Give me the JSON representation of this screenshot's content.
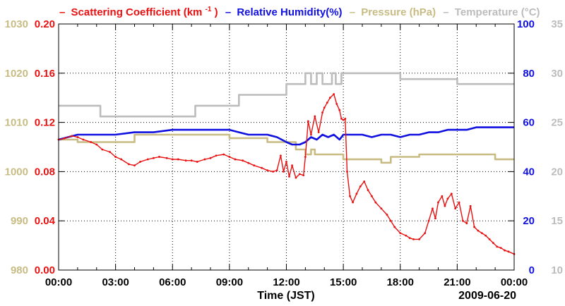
{
  "chart_data": {
    "type": "line",
    "title": "",
    "legend": [
      {
        "dash": "–",
        "label_main": "Scattering Coefficient (km",
        "label_sup": "-1",
        "label_tail": ")",
        "color": "#e81010"
      },
      {
        "dash": "–",
        "label": "Relative Humidity(%)",
        "color": "#1010e0"
      },
      {
        "dash": "–",
        "label": "Pressure (hPa)",
        "color": "#c8bc84"
      },
      {
        "dash": "–",
        "label": "Temperature (°C)",
        "color": "#bcbcbc"
      }
    ],
    "xlabel": "Time (JST)",
    "date_label": "2009-06-20",
    "x_range_hours": [
      0,
      24
    ],
    "x_ticks": [
      "00:00",
      "03:00",
      "06:00",
      "09:00",
      "12:00",
      "15:00",
      "18:00",
      "21:00",
      "00:00"
    ],
    "axes": {
      "scattering": {
        "range": [
          0,
          0.2
        ],
        "ticks": [
          "0.00",
          "0.04",
          "0.08",
          "0.12",
          "0.16",
          "0.20"
        ],
        "color": "#e81010"
      },
      "pressure": {
        "range": [
          980,
          1030
        ],
        "ticks": [
          "980",
          "990",
          "1000",
          "1010",
          "1020",
          "1030"
        ],
        "color": "#c8bc84"
      },
      "humidity": {
        "range": [
          0,
          100
        ],
        "ticks": [
          "0",
          "20",
          "40",
          "60",
          "80",
          "100"
        ],
        "color": "#1010e0"
      },
      "temperature": {
        "range": [
          10,
          35
        ],
        "ticks": [
          "10",
          "15",
          "20",
          "25",
          "30",
          "35"
        ],
        "color": "#bcbcbc"
      }
    },
    "grid": true,
    "series": [
      {
        "name": "Temperature",
        "axis": "temperature",
        "color": "#bcbcbc",
        "x": [
          0,
          2.2,
          2.2,
          7.2,
          7.2,
          9.5,
          9.5,
          12.0,
          12.0,
          13.0,
          13.0,
          13.3,
          13.3,
          13.6,
          13.6,
          13.9,
          13.9,
          14.4,
          14.4,
          14.6,
          14.6,
          14.9,
          14.9,
          18.0,
          18.0,
          21.0,
          21.0,
          24
        ],
        "y": [
          26.7,
          26.7,
          25.6,
          25.6,
          26.7,
          26.7,
          27.8,
          27.8,
          28.9,
          28.9,
          30.0,
          30.0,
          28.9,
          28.9,
          30.0,
          30.0,
          28.9,
          28.9,
          30.0,
          30.0,
          28.9,
          28.9,
          30.0,
          30.0,
          29.4,
          29.4,
          28.9,
          28.9
        ]
      },
      {
        "name": "Pressure",
        "axis": "pressure",
        "color": "#c8bc84",
        "x": [
          0,
          1.0,
          1.0,
          4.0,
          4.0,
          9.0,
          9.0,
          11.0,
          11.0,
          12.5,
          12.5,
          13.0,
          13.0,
          13.3,
          13.3,
          13.5,
          13.5,
          15.0,
          15.0,
          17.0,
          17.0,
          17.5,
          17.5,
          19.0,
          19.0,
          23.0,
          23.0,
          24
        ],
        "y": [
          1006.5,
          1006.5,
          1006.0,
          1006.0,
          1007.5,
          1007.5,
          1006.8,
          1006.8,
          1006.0,
          1006.0,
          1004.5,
          1004.5,
          1003.5,
          1003.5,
          1004.5,
          1004.5,
          1003.5,
          1003.5,
          1002.5,
          1002.5,
          1001.8,
          1001.8,
          1003.0,
          1003.0,
          1003.5,
          1003.5,
          1002.5,
          1002.5
        ]
      },
      {
        "name": "Relative Humidity",
        "axis": "humidity",
        "color": "#1010e0",
        "x": [
          0,
          0.5,
          1.0,
          1.5,
          2.0,
          3.0,
          4.0,
          5.0,
          6.0,
          7.0,
          8.0,
          9.0,
          9.5,
          10.0,
          10.5,
          11.0,
          11.5,
          12.0,
          12.3,
          12.7,
          13.0,
          13.3,
          13.6,
          13.9,
          14.2,
          14.5,
          14.8,
          15.0,
          15.5,
          16.0,
          16.5,
          17.0,
          17.5,
          18.0,
          18.5,
          19.0,
          19.5,
          20.0,
          20.5,
          21.0,
          21.5,
          22.0,
          22.5,
          23.0,
          23.5,
          24.0
        ],
        "y": [
          53,
          54,
          55,
          55,
          55,
          55,
          56,
          56,
          57,
          57,
          57,
          57,
          56,
          55,
          55,
          55,
          54,
          52,
          51,
          51,
          52,
          54,
          53,
          55,
          54,
          55,
          53,
          55,
          55,
          55,
          54,
          55,
          55,
          54,
          55,
          55,
          56,
          56,
          57,
          57,
          57,
          58,
          58,
          58,
          58,
          58
        ]
      },
      {
        "name": "Scattering Coefficient",
        "axis": "scattering",
        "color": "#e81010",
        "x": [
          0,
          0.3,
          0.7,
          1.0,
          1.3,
          1.7,
          2.0,
          2.3,
          2.7,
          3.0,
          3.3,
          3.7,
          4.0,
          4.3,
          4.7,
          5.0,
          5.3,
          5.7,
          6.0,
          6.3,
          6.7,
          7.0,
          7.3,
          7.7,
          8.0,
          8.3,
          8.7,
          9.0,
          9.3,
          9.7,
          10.0,
          10.3,
          10.7,
          11.0,
          11.3,
          11.5,
          11.7,
          11.85,
          12.0,
          12.15,
          12.3,
          12.5,
          12.7,
          12.9,
          13.0,
          13.15,
          13.3,
          13.5,
          13.7,
          13.9,
          14.0,
          14.15,
          14.3,
          14.5,
          14.65,
          14.8,
          14.9,
          15.0,
          15.1,
          15.2,
          15.35,
          15.5,
          15.7,
          15.9,
          16.1,
          16.3,
          16.5,
          16.7,
          17.0,
          17.3,
          17.5,
          17.7,
          18.0,
          18.3,
          18.5,
          18.7,
          19.0,
          19.3,
          19.5,
          19.7,
          19.85,
          20.0,
          20.2,
          20.35,
          20.5,
          20.7,
          20.9,
          21.1,
          21.3,
          21.5,
          21.7,
          21.9,
          22.1,
          22.3,
          22.5,
          22.7,
          22.9,
          23.1,
          23.3,
          23.5,
          23.7,
          24.0
        ],
        "y": [
          0.106,
          0.107,
          0.109,
          0.108,
          0.106,
          0.104,
          0.102,
          0.098,
          0.096,
          0.092,
          0.09,
          0.086,
          0.085,
          0.088,
          0.09,
          0.091,
          0.092,
          0.091,
          0.09,
          0.09,
          0.089,
          0.089,
          0.088,
          0.09,
          0.091,
          0.093,
          0.094,
          0.092,
          0.09,
          0.089,
          0.087,
          0.085,
          0.083,
          0.081,
          0.08,
          0.081,
          0.093,
          0.08,
          0.088,
          0.076,
          0.085,
          0.075,
          0.078,
          0.077,
          0.092,
          0.121,
          0.11,
          0.125,
          0.112,
          0.128,
          0.132,
          0.136,
          0.14,
          0.143,
          0.135,
          0.13,
          0.123,
          0.122,
          0.123,
          0.08,
          0.06,
          0.055,
          0.062,
          0.068,
          0.072,
          0.065,
          0.06,
          0.055,
          0.05,
          0.045,
          0.04,
          0.035,
          0.03,
          0.028,
          0.026,
          0.025,
          0.025,
          0.03,
          0.04,
          0.05,
          0.042,
          0.055,
          0.06,
          0.052,
          0.058,
          0.062,
          0.05,
          0.055,
          0.04,
          0.038,
          0.052,
          0.035,
          0.032,
          0.03,
          0.028,
          0.025,
          0.022,
          0.019,
          0.018,
          0.016,
          0.015,
          0.013
        ]
      }
    ]
  }
}
